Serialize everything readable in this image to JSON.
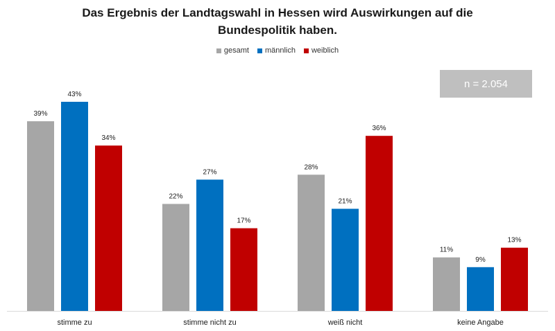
{
  "title_line1": "Das Ergebnis der Landtagswahl in Hessen wird Auswirkungen auf die",
  "title_line2": "Bundespolitik haben.",
  "sample_note": "n = 2.054",
  "colors": {
    "gesamt": "#a6a6a6",
    "maennlich": "#0070c0",
    "weiblich": "#c00000",
    "sample_box": "#bfbfbf"
  },
  "chart_data": {
    "type": "bar",
    "title": "Das Ergebnis der Landtagswahl in Hessen wird Auswirkungen auf die Bundespolitik haben.",
    "categories": [
      "stimme zu",
      "stimme nicht zu",
      "weiß nicht",
      "keine Angabe"
    ],
    "series": [
      {
        "name": "gesamt",
        "color": "#a6a6a6",
        "values": [
          39,
          22,
          28,
          11
        ],
        "labels": [
          "39%",
          "22%",
          "28%",
          "11%"
        ]
      },
      {
        "name": "männlich",
        "color": "#0070c0",
        "values": [
          43,
          27,
          21,
          9
        ],
        "labels": [
          "43%",
          "27%",
          "21%",
          "9%"
        ]
      },
      {
        "name": "weiblich",
        "color": "#c00000",
        "values": [
          34,
          17,
          36,
          13
        ],
        "labels": [
          "34%",
          "17%",
          "36%",
          "13%"
        ]
      }
    ],
    "unit": "%",
    "ylim": [
      0,
      43
    ],
    "grid": false,
    "legend_position": "top"
  }
}
